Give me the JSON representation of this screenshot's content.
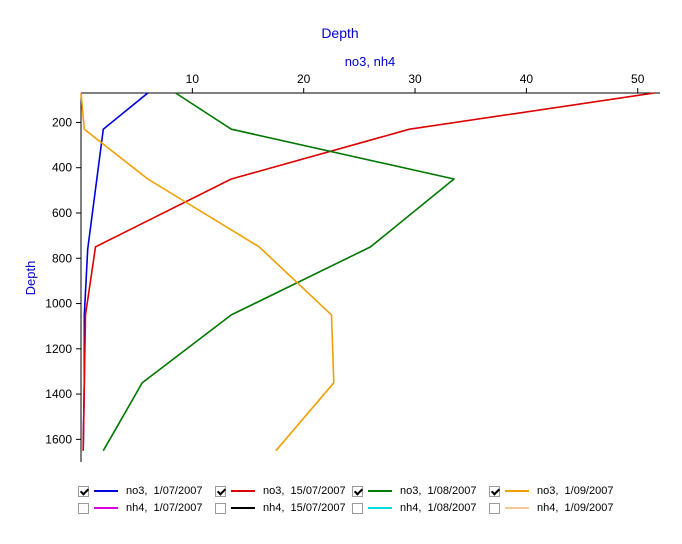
{
  "chart_data": {
    "type": "line",
    "title": "Depth",
    "x_axis_label": "no3, nh4",
    "y_axis_label": "Depth",
    "x_ticks": [
      10,
      20,
      30,
      40,
      50
    ],
    "y_ticks": [
      200,
      400,
      600,
      800,
      1000,
      1200,
      1400,
      1600
    ],
    "xlim": [
      0,
      52
    ],
    "ylim": [
      70,
      1700
    ],
    "x_axis_position": "top",
    "y_inverted": true,
    "grid": false,
    "legend_position": "bottom",
    "colors": {
      "title": "#0000cc",
      "axis": "#000000"
    },
    "series": [
      {
        "name": "no3,  1/07/2007",
        "color": "#0000dd",
        "checked": true,
        "points": [
          [
            6.0,
            70
          ],
          [
            2.0,
            230
          ],
          [
            0.6,
            760
          ],
          [
            0.3,
            1050
          ],
          [
            0.3,
            1350
          ],
          [
            0.2,
            1650
          ]
        ]
      },
      {
        "name": "no3,  15/07/2007",
        "color": "#dd0000",
        "checked": true,
        "points": [
          [
            51.5,
            70
          ],
          [
            29.5,
            230
          ],
          [
            13.5,
            450
          ],
          [
            1.3,
            750
          ],
          [
            0.4,
            1050
          ],
          [
            0.3,
            1350
          ],
          [
            0.2,
            1650
          ]
        ]
      },
      {
        "name": "no3,  1/08/2007",
        "color": "#007700",
        "checked": true,
        "points": [
          [
            8.5,
            70
          ],
          [
            13.5,
            230
          ],
          [
            33.5,
            450
          ],
          [
            26.0,
            750
          ],
          [
            13.5,
            1050
          ],
          [
            5.5,
            1350
          ],
          [
            2.0,
            1650
          ]
        ]
      },
      {
        "name": "no3,  1/09/2007",
        "color": "#f0a000",
        "checked": true,
        "points": [
          [
            0.0,
            70
          ],
          [
            0.3,
            230
          ],
          [
            6.0,
            450
          ],
          [
            16.0,
            750
          ],
          [
            22.5,
            1050
          ],
          [
            22.7,
            1350
          ],
          [
            17.5,
            1650
          ]
        ]
      },
      {
        "name": "nh4,  1/07/2007",
        "color": "#dd00dd",
        "checked": false,
        "points": []
      },
      {
        "name": "nh4,  15/07/2007",
        "color": "#000000",
        "checked": false,
        "points": []
      },
      {
        "name": "nh4,  1/08/2007",
        "color": "#00dddd",
        "checked": false,
        "points": []
      },
      {
        "name": "nh4,  1/09/2007",
        "color": "#f5c890",
        "checked": false,
        "points": []
      }
    ]
  }
}
